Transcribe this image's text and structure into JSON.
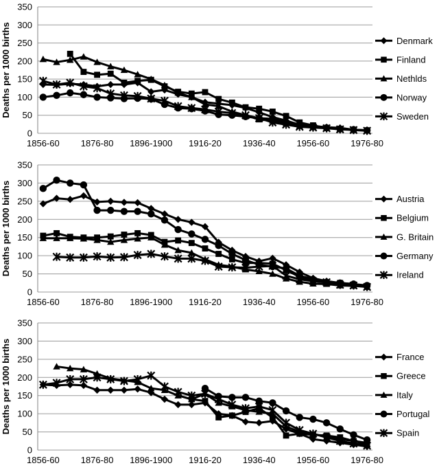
{
  "chart_data": [
    {
      "type": "line",
      "ylabel": "Deaths per 1000 births",
      "ylim": [
        0,
        350
      ],
      "yticks": [
        0,
        50,
        100,
        150,
        200,
        250,
        300,
        350
      ],
      "xtick_labels": [
        "1856-60",
        "1876-80",
        "1896-1900",
        "1916-20",
        "1936-40",
        "1956-60",
        "1976-80"
      ],
      "x": [
        1858,
        1863,
        1868,
        1873,
        1878,
        1883,
        1888,
        1893,
        1898,
        1903,
        1908,
        1913,
        1918,
        1923,
        1928,
        1933,
        1938,
        1943,
        1948,
        1953,
        1958,
        1963,
        1968,
        1973,
        1978
      ],
      "grid": "horizontal",
      "legend_position": "right",
      "series": [
        {
          "name": "Denmark",
          "marker": "diamond",
          "values": [
            135,
            134,
            137,
            135,
            130,
            135,
            135,
            140,
            115,
            120,
            108,
            100,
            86,
            82,
            78,
            70,
            58,
            45,
            35,
            24,
            20,
            17,
            15,
            10,
            8
          ]
        },
        {
          "name": "Finland",
          "values": [
            null,
            null,
            220,
            170,
            162,
            165,
            140,
            145,
            148,
            130,
            115,
            110,
            114,
            95,
            85,
            72,
            68,
            60,
            48,
            30,
            22,
            15,
            12,
            10,
            8
          ],
          "marker": "square"
        },
        {
          "name": "Nethlds",
          "marker": "triangle",
          "values": [
            205,
            197,
            203,
            212,
            197,
            185,
            175,
            163,
            150,
            133,
            112,
            100,
            80,
            75,
            60,
            50,
            38,
            35,
            28,
            20,
            17,
            15,
            12,
            10,
            8
          ]
        },
        {
          "name": "Norway",
          "marker": "circle",
          "values": [
            100,
            105,
            112,
            107,
            100,
            98,
            96,
            97,
            95,
            80,
            70,
            68,
            62,
            52,
            50,
            46,
            42,
            40,
            30,
            22,
            18,
            15,
            12,
            10,
            8
          ]
        },
        {
          "name": "Sweden",
          "marker": "star",
          "values": [
            145,
            135,
            140,
            130,
            125,
            110,
            105,
            103,
            96,
            90,
            75,
            70,
            66,
            60,
            56,
            50,
            42,
            30,
            24,
            18,
            16,
            14,
            11,
            9,
            7
          ]
        }
      ]
    },
    {
      "type": "line",
      "ylabel": "Deaths per 1000 births",
      "ylim": [
        0,
        350
      ],
      "yticks": [
        0,
        50,
        100,
        150,
        200,
        250,
        300,
        350
      ],
      "xtick_labels": [
        "1856-60",
        "1876-80",
        "1896-1900",
        "1916-20",
        "1936-40",
        "1956-60",
        "1976-80"
      ],
      "x": [
        1858,
        1863,
        1868,
        1873,
        1878,
        1883,
        1888,
        1893,
        1898,
        1903,
        1908,
        1913,
        1918,
        1923,
        1928,
        1933,
        1938,
        1943,
        1948,
        1953,
        1958,
        1963,
        1968,
        1973,
        1978
      ],
      "grid": "horizontal",
      "legend_position": "right",
      "series": [
        {
          "name": "Austria",
          "marker": "diamond",
          "values": [
            243,
            258,
            255,
            265,
            248,
            250,
            247,
            246,
            230,
            215,
            200,
            192,
            180,
            137,
            115,
            98,
            85,
            93,
            75,
            55,
            38,
            30,
            25,
            22,
            15
          ]
        },
        {
          "name": "Belgium",
          "marker": "square",
          "values": [
            155,
            162,
            152,
            150,
            150,
            153,
            158,
            162,
            157,
            138,
            142,
            135,
            120,
            105,
            90,
            80,
            80,
            78,
            60,
            42,
            30,
            27,
            25,
            20,
            14
          ]
        },
        {
          "name": "G. Britain",
          "marker": "triangle",
          "values": [
            148,
            148,
            148,
            147,
            143,
            138,
            143,
            147,
            150,
            130,
            115,
            108,
            90,
            75,
            70,
            62,
            57,
            50,
            37,
            28,
            23,
            22,
            18,
            17,
            14
          ]
        },
        {
          "name": "Germany",
          "marker": "circle",
          "values": [
            285,
            308,
            300,
            295,
            225,
            225,
            222,
            222,
            215,
            198,
            172,
            160,
            145,
            128,
            105,
            88,
            75,
            70,
            65,
            45,
            35,
            27,
            25,
            22,
            18
          ]
        },
        {
          "name": "Ireland",
          "marker": "star",
          "values": [
            null,
            97,
            95,
            95,
            98,
            95,
            96,
            102,
            105,
            98,
            92,
            92,
            86,
            70,
            68,
            67,
            70,
            72,
            45,
            35,
            30,
            27,
            20,
            18,
            14
          ]
        }
      ]
    },
    {
      "type": "line",
      "ylabel": "Deaths per 1000 births",
      "ylim": [
        0,
        350
      ],
      "yticks": [
        0,
        50,
        100,
        150,
        200,
        250,
        300,
        350
      ],
      "xtick_labels": [
        "1856-60",
        "1876-80",
        "1896-1900",
        "1916-20",
        "1936-40",
        "1956-60",
        "1976-80"
      ],
      "x": [
        1858,
        1863,
        1868,
        1873,
        1878,
        1883,
        1888,
        1893,
        1898,
        1903,
        1908,
        1913,
        1918,
        1923,
        1928,
        1933,
        1938,
        1943,
        1948,
        1953,
        1958,
        1963,
        1968,
        1973,
        1978
      ],
      "grid": "horizontal",
      "legend_position": "right",
      "series": [
        {
          "name": "France",
          "marker": "diamond",
          "values": [
            180,
            178,
            180,
            178,
            165,
            165,
            165,
            168,
            158,
            140,
            125,
            125,
            130,
            100,
            95,
            78,
            75,
            80,
            58,
            45,
            30,
            25,
            20,
            15,
            10
          ]
        },
        {
          "name": "Greece",
          "marker": "square",
          "values": [
            null,
            null,
            null,
            null,
            null,
            null,
            null,
            null,
            null,
            null,
            null,
            140,
            135,
            90,
            95,
            105,
            115,
            90,
            40,
            45,
            42,
            40,
            35,
            25,
            20
          ]
        },
        {
          "name": "Italy",
          "marker": "triangle",
          "values": [
            null,
            230,
            225,
            222,
            210,
            197,
            192,
            187,
            170,
            165,
            150,
            140,
            155,
            130,
            120,
            110,
            105,
            100,
            65,
            50,
            45,
            35,
            30,
            25,
            15
          ]
        },
        {
          "name": "Portugal",
          "marker": "circle",
          "values": [
            null,
            null,
            null,
            null,
            null,
            null,
            null,
            null,
            null,
            null,
            null,
            null,
            170,
            148,
            145,
            145,
            135,
            130,
            108,
            90,
            85,
            75,
            58,
            42,
            28
          ]
        },
        {
          "name": "Spain",
          "marker": "star",
          "values": [
            180,
            185,
            195,
            195,
            200,
            195,
            190,
            195,
            205,
            175,
            160,
            150,
            155,
            140,
            125,
            115,
            120,
            110,
            75,
            55,
            45,
            35,
            25,
            18,
            12
          ]
        }
      ]
    }
  ]
}
